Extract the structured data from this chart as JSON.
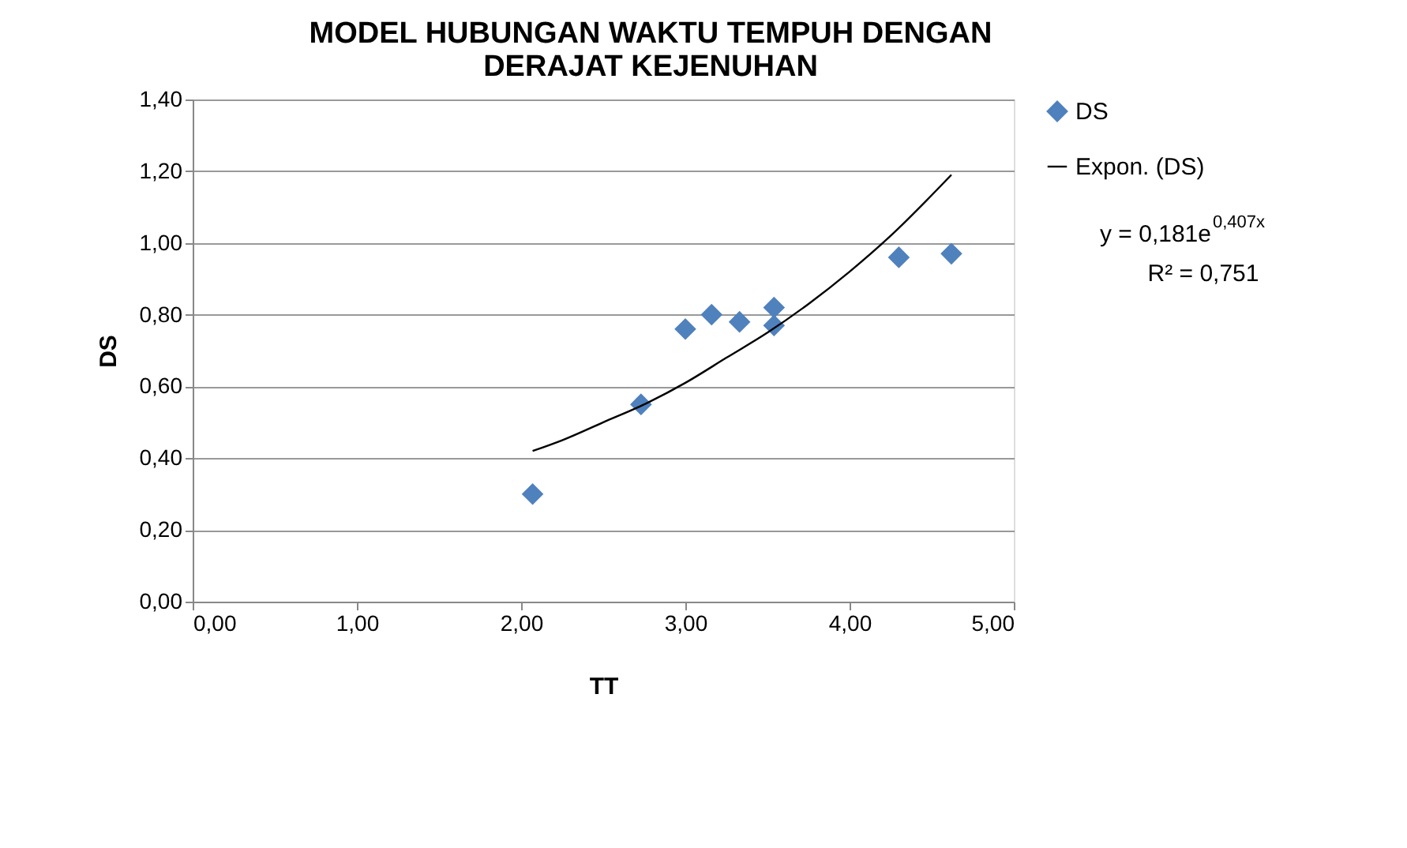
{
  "chart_data": {
    "type": "scatter",
    "title": "MODEL HUBUNGAN WAKTU TEMPUH DENGAN DERAJAT KEJENUHAN",
    "xlabel": "TT",
    "ylabel": "DS",
    "series": [
      {
        "name": "DS",
        "color": "#4f81bd",
        "marker": "diamond",
        "x": [
          2.07,
          2.73,
          3.0,
          3.16,
          3.33,
          3.54,
          3.54,
          4.3,
          4.62
        ],
        "values": [
          0.3,
          0.55,
          0.76,
          0.8,
          0.78,
          0.82,
          0.77,
          0.96,
          0.97
        ]
      },
      {
        "name": "Expon. (DS)",
        "type": "line",
        "color": "#000000",
        "marker": "none",
        "x": [
          2.07,
          2.25,
          2.5,
          2.75,
          3.0,
          3.25,
          3.5,
          3.75,
          4.0,
          4.25,
          4.62
        ],
        "values": [
          0.42,
          0.45,
          0.5,
          0.55,
          0.61,
          0.68,
          0.75,
          0.83,
          0.92,
          1.02,
          1.19
        ]
      }
    ],
    "xlim": [
      0,
      5
    ],
    "ylim": [
      0,
      1.4
    ],
    "xticks": [
      {
        "value": 0,
        "label": "0,00"
      },
      {
        "value": 1,
        "label": "1,00"
      },
      {
        "value": 2,
        "label": "2,00"
      },
      {
        "value": 3,
        "label": "3,00"
      },
      {
        "value": 4,
        "label": "4,00"
      },
      {
        "value": 5,
        "label": "5,00"
      }
    ],
    "yticks": [
      {
        "value": 0,
        "label": "0,00"
      },
      {
        "value": 0.2,
        "label": "0,20"
      },
      {
        "value": 0.4,
        "label": "0,40"
      },
      {
        "value": 0.6,
        "label": "0,60"
      },
      {
        "value": 0.8,
        "label": "0,80"
      },
      {
        "value": 1.0,
        "label": "1,00"
      },
      {
        "value": 1.2,
        "label": "1,20"
      },
      {
        "value": 1.4,
        "label": "1,40"
      }
    ],
    "grid": "y",
    "legend": "right",
    "annotations": [
      "y = 0,181e$^{0,407x}$",
      "R² = 0,751"
    ]
  }
}
